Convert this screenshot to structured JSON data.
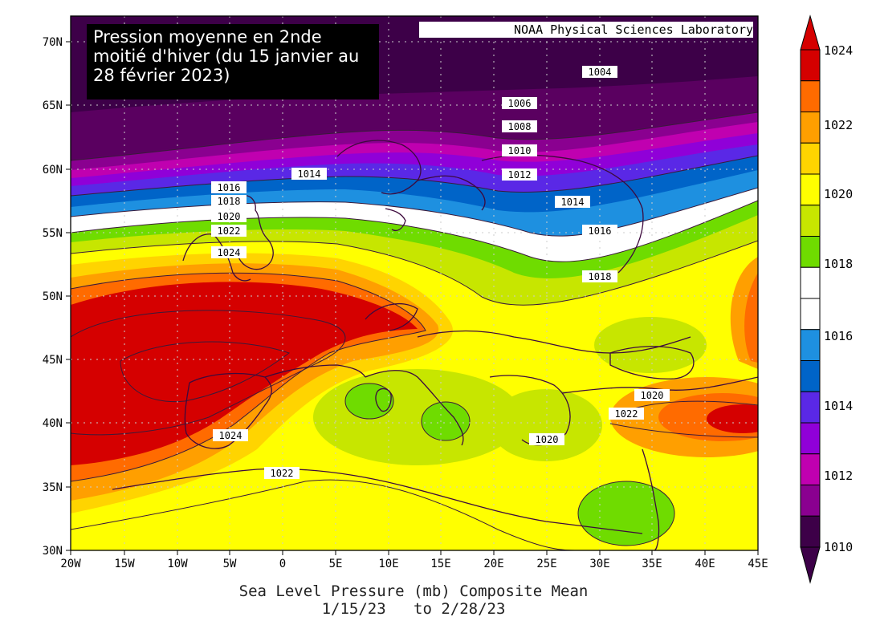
{
  "title": "Pression moyenne en 2nde moitié d'hiver (du 15 janvier au 28 février 2023)",
  "credit": "NOAA Physical Sciences Laboratory",
  "caption_line1": "Sea Level Pressure (mb) Composite Mean",
  "caption_line2": "1/15/23   to 2/28/23",
  "map": {
    "lon_labels": [
      "20W",
      "15W",
      "10W",
      "5W",
      "0",
      "5E",
      "10E",
      "15E",
      "20E",
      "25E",
      "30E",
      "35E",
      "40E",
      "45E"
    ],
    "lat_labels": [
      "70N",
      "65N",
      "60N",
      "55N",
      "50N",
      "45N",
      "40N",
      "35N",
      "30N"
    ],
    "contour_labels": [
      "1004",
      "1006",
      "1008",
      "1010",
      "1012",
      "1014",
      "1014",
      "1016",
      "1016",
      "1018",
      "1018",
      "1020",
      "1022",
      "1024",
      "1024",
      "1022",
      "1020",
      "1022",
      "1020"
    ]
  },
  "colorbar": {
    "labels": [
      "1024",
      "1022",
      "1020",
      "1018",
      "1016",
      "1014",
      "1012",
      "1010"
    ],
    "colors": [
      "#d50000",
      "#ff6b00",
      "#ff9f00",
      "#ffd400",
      "#ffff00",
      "#c7e600",
      "#6fdc00",
      "#ffffff",
      "#ffffff",
      "#1e90e0",
      "#0064c8",
      "#5a28e6",
      "#9000d8",
      "#c000b0",
      "#8a0090",
      "#3d0048"
    ]
  }
}
